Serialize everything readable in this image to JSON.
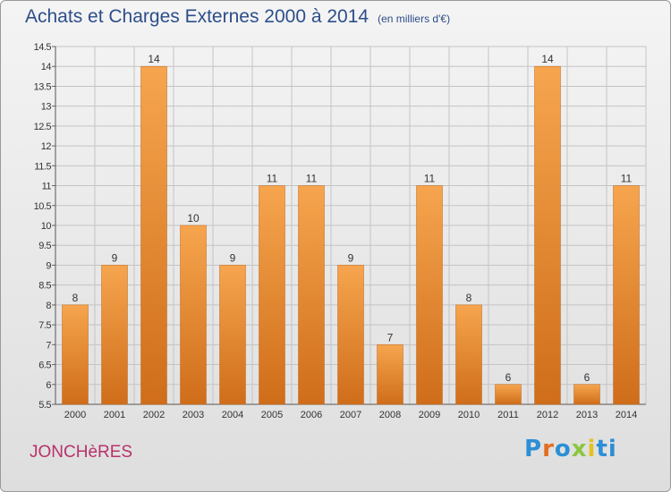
{
  "header": {
    "title": "Achats et Charges Externes 2000 à 2014",
    "unit": "(en milliers d'€)"
  },
  "footer": {
    "commune": "JONCHèRES",
    "logo": "Proxiti",
    "logo_letters": [
      "P",
      "r",
      "o",
      "x",
      "i",
      "ti"
    ]
  },
  "colors": {
    "bar_light": "#f6a54e",
    "bar_dark": "#cf6d1a",
    "title": "#2d4e8a",
    "commune": "#b8326a"
  },
  "chart_data": {
    "type": "bar",
    "categories": [
      "2000",
      "2001",
      "2002",
      "2003",
      "2004",
      "2005",
      "2006",
      "2007",
      "2008",
      "2009",
      "2010",
      "2011",
      "2012",
      "2013",
      "2014"
    ],
    "values": [
      8,
      9,
      14,
      10,
      9,
      11,
      11,
      9,
      7,
      11,
      8,
      6,
      14,
      6,
      11
    ],
    "ylim": [
      5.5,
      14.5
    ],
    "yticks": [
      "5.5",
      "6",
      "6.5",
      "7",
      "7.5",
      "8",
      "8.5",
      "9",
      "9.5",
      "10",
      "10.5",
      "11",
      "11.5",
      "12",
      "12.5",
      "13",
      "13.5",
      "14",
      "14.5"
    ],
    "grid": true
  }
}
